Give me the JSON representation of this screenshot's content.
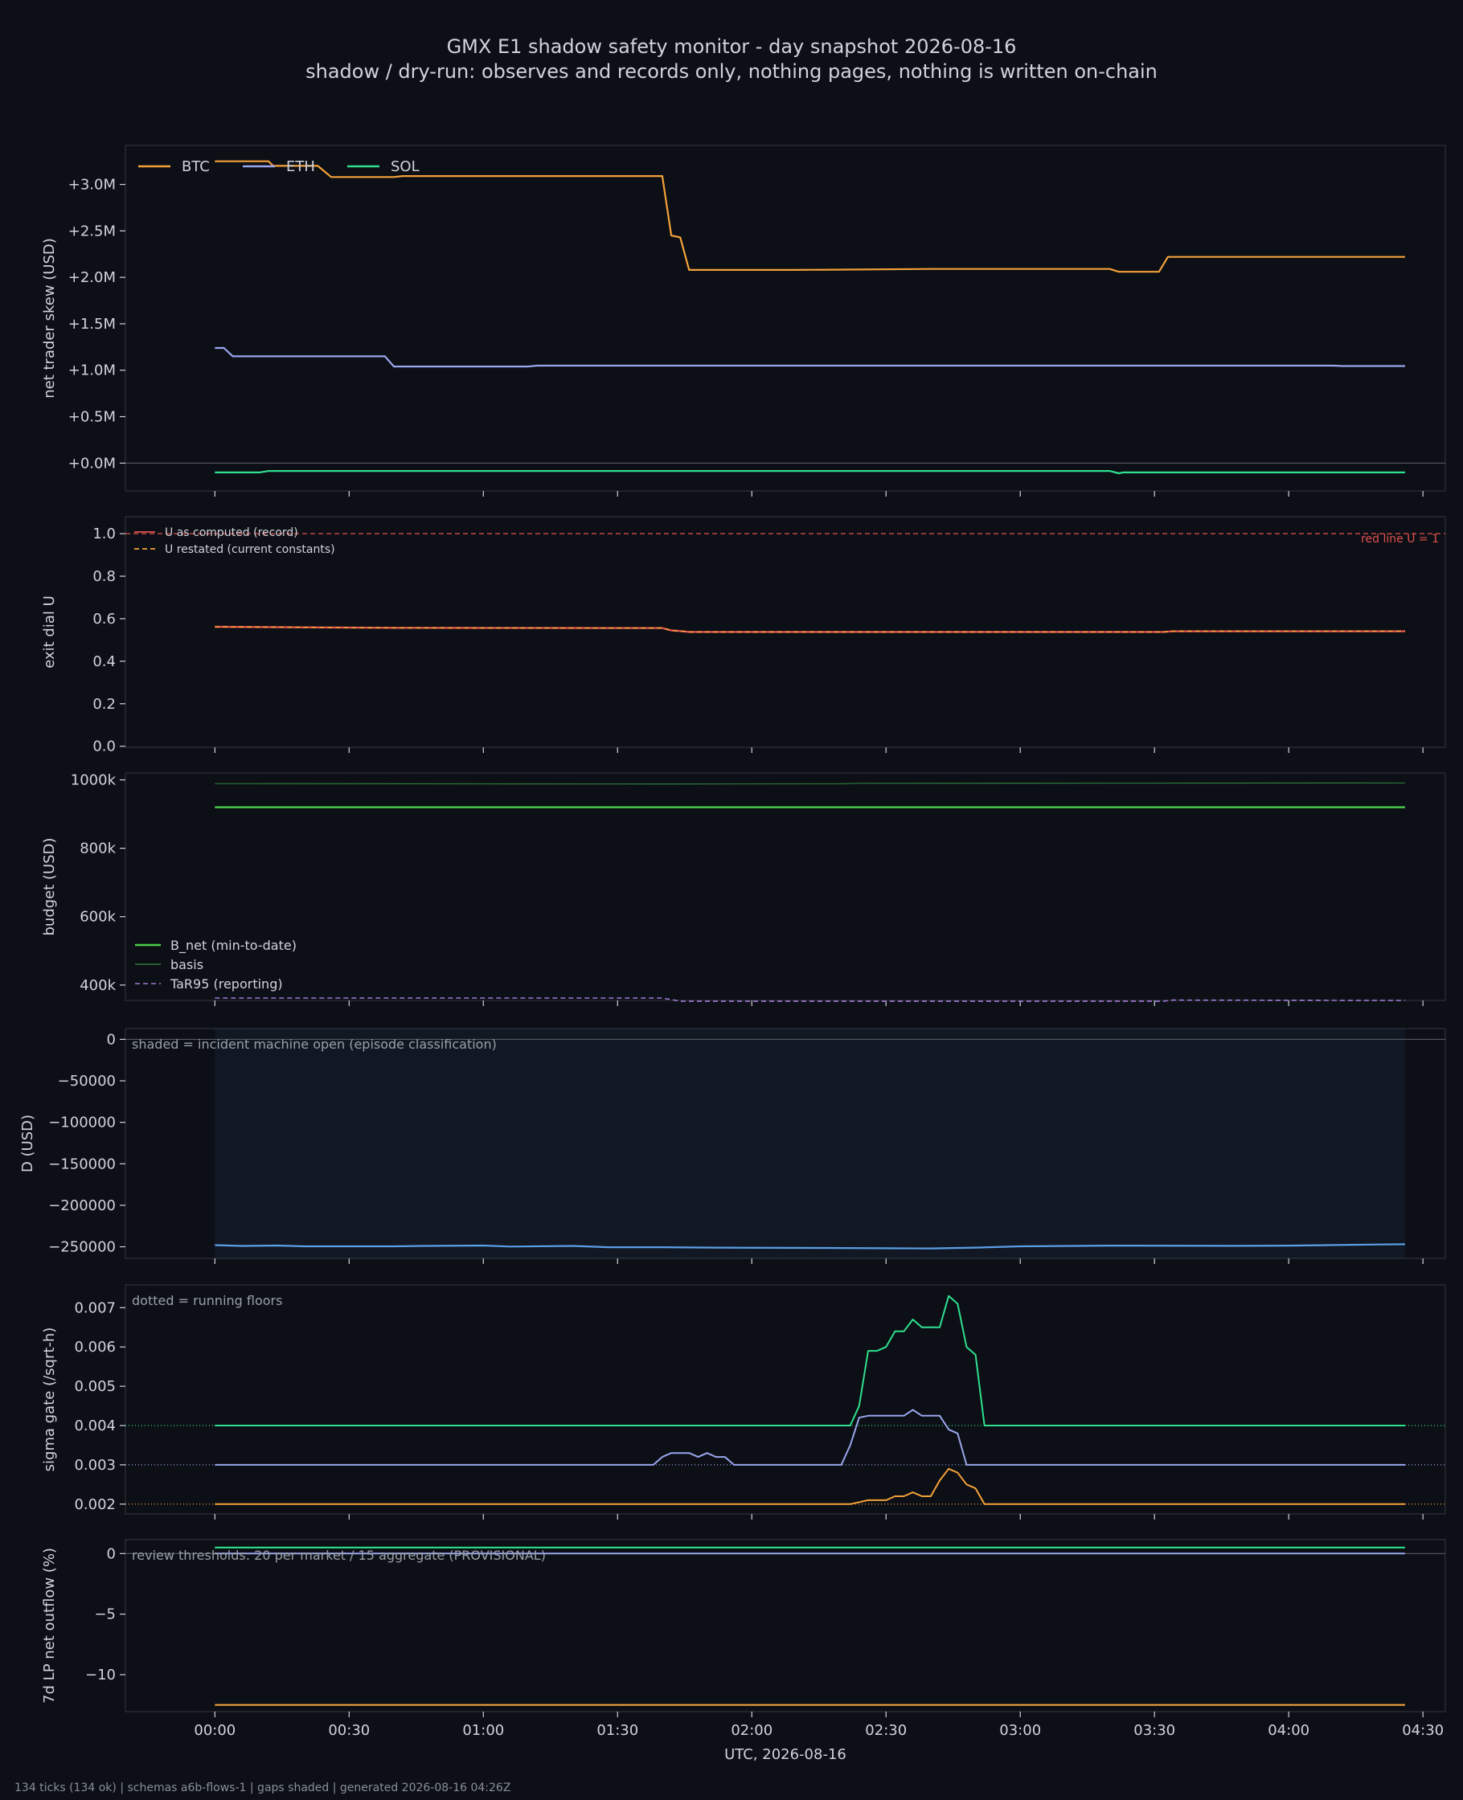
{
  "header": {
    "title": "GMX E1 shadow safety monitor - day snapshot 2026-08-16",
    "subtitle": "shadow / dry-run: observes and records only, nothing pages, nothing is written on-chain"
  },
  "footer": "134 ticks (134 ok) | schemas a6b-flows-1 | gaps shaded | generated 2026-08-16 04:26Z",
  "colors": {
    "btc": "#f4a13a",
    "eth": "#9aa6ee",
    "sol": "#2fe08e",
    "green": "#4ccf4c",
    "red": "#e35050",
    "purple": "#a07ad8",
    "blue": "#5b9fe6"
  },
  "chart_data": [
    {
      "id": "skew",
      "type": "line",
      "ylabel": "net trader skew (USD)",
      "xlim": [
        -20,
        275
      ],
      "ylim": [
        -300000,
        3420000
      ],
      "yticks": [
        0,
        500000,
        1000000,
        1500000,
        2000000,
        2500000,
        3000000
      ],
      "ytick_labels": [
        "+0.0M",
        "+0.5M",
        "+1.0M",
        "+1.5M",
        "+2.0M",
        "+2.5M",
        "+3.0M"
      ],
      "hlines": [
        {
          "y": 0,
          "color": "#55595f",
          "dash": ""
        }
      ],
      "legend": "upper-left",
      "series": [
        {
          "name": "BTC",
          "color": "#f4a13a",
          "width": 2.2,
          "points": [
            [
              0,
              3250000
            ],
            [
              12,
              3250000
            ],
            [
              13,
              3200000
            ],
            [
              23,
              3200000
            ],
            [
              26,
              3080000
            ],
            [
              40,
              3080000
            ],
            [
              42,
              3090000
            ],
            [
              84,
              3090000
            ],
            [
              100,
              3090000
            ],
            [
              102,
              2450000
            ],
            [
              104,
              2430000
            ],
            [
              106,
              2080000
            ],
            [
              130,
              2080000
            ],
            [
              160,
              2090000
            ],
            [
              200,
              2090000
            ],
            [
              202,
              2060000
            ],
            [
              211,
              2060000
            ],
            [
              213,
              2220000
            ],
            [
              266,
              2220000
            ]
          ]
        },
        {
          "name": "ETH",
          "color": "#9aa6ee",
          "width": 2.2,
          "points": [
            [
              0,
              1240000
            ],
            [
              2,
              1240000
            ],
            [
              4,
              1150000
            ],
            [
              38,
              1150000
            ],
            [
              40,
              1040000
            ],
            [
              70,
              1040000
            ],
            [
              72,
              1050000
            ],
            [
              150,
              1050000
            ],
            [
              250,
              1050000
            ],
            [
              252,
              1045000
            ],
            [
              266,
              1045000
            ]
          ]
        },
        {
          "name": "SOL",
          "color": "#2fe08e",
          "width": 2.2,
          "points": [
            [
              0,
              -100000
            ],
            [
              10,
              -100000
            ],
            [
              12,
              -85000
            ],
            [
              200,
              -85000
            ],
            [
              202,
              -110000
            ],
            [
              203,
              -100000
            ],
            [
              266,
              -100000
            ]
          ]
        }
      ]
    },
    {
      "id": "exit",
      "type": "line",
      "ylabel": "exit dial U",
      "xlim": [
        -20,
        275
      ],
      "ylim": [
        -0.005,
        1.08
      ],
      "yticks": [
        0,
        0.2,
        0.4,
        0.6,
        0.8,
        1.0
      ],
      "ytick_labels": [
        "0.0",
        "0.2",
        "0.4",
        "0.6",
        "0.8",
        "1.0"
      ],
      "hlines": [
        {
          "y": 1.0,
          "color": "#e35050",
          "dash": "6,4"
        }
      ],
      "annotations": [
        {
          "text": "red line U = 1",
          "align": "right",
          "color": "#e35050"
        }
      ],
      "legend": "upper-left-small",
      "series": [
        {
          "name": "U as computed (record)",
          "color": "#e35050",
          "width": 2.4,
          "dash": "",
          "points": [
            [
              0,
              0.562
            ],
            [
              40,
              0.557
            ],
            [
              100,
              0.556
            ],
            [
              102,
              0.545
            ],
            [
              104,
              0.542
            ],
            [
              106,
              0.538
            ],
            [
              212,
              0.538
            ],
            [
              214,
              0.541
            ],
            [
              266,
              0.541
            ]
          ]
        },
        {
          "name": "U restated (current constants)",
          "color": "#f4a13a",
          "width": 1.6,
          "dash": "6,4",
          "points": [
            [
              0,
              0.562
            ],
            [
              40,
              0.557
            ],
            [
              100,
              0.556
            ],
            [
              102,
              0.545
            ],
            [
              104,
              0.542
            ],
            [
              106,
              0.538
            ],
            [
              212,
              0.538
            ],
            [
              214,
              0.541
            ],
            [
              266,
              0.541
            ]
          ]
        }
      ]
    },
    {
      "id": "budget",
      "type": "line",
      "ylabel": "budget (USD)",
      "xlim": [
        -20,
        275
      ],
      "ylim": [
        355000,
        1020000
      ],
      "yticks": [
        400000,
        600000,
        800000,
        1000000
      ],
      "ytick_labels": [
        "400k",
        "600k",
        "800k",
        "1000k"
      ],
      "legend": "lower-left",
      "series": [
        {
          "name": "B_net (min-to-date)",
          "color": "#4ccf4c",
          "width": 2.4,
          "points": [
            [
              0,
              920000
            ],
            [
              266,
              920000
            ]
          ]
        },
        {
          "name": "basis",
          "color": "#2f7a3a",
          "width": 1.2,
          "points": [
            [
              0,
              989000
            ],
            [
              100,
              988000
            ],
            [
              140,
              988500
            ],
            [
              143,
              990000
            ],
            [
              266,
              991000
            ]
          ]
        },
        {
          "name": "TaR95 (reporting)",
          "color": "#a07ad8",
          "width": 1.6,
          "dash": "6,4",
          "points": [
            [
              0,
              362000
            ],
            [
              100,
              362000
            ],
            [
              104,
              353000
            ],
            [
              212,
              353000
            ],
            [
              214,
              356000
            ],
            [
              266,
              355000
            ]
          ]
        }
      ]
    },
    {
      "id": "d",
      "type": "line",
      "ylabel": "D (USD)",
      "xlim": [
        -20,
        275
      ],
      "ylim": [
        -264000,
        13000
      ],
      "yticks": [
        -250000,
        -200000,
        -150000,
        -100000,
        -50000,
        0
      ],
      "ytick_labels": [
        "−250000",
        "−200000",
        "−150000",
        "−100000",
        "−50000",
        "0"
      ],
      "hlines": [
        {
          "y": 0,
          "color": "#55595f",
          "dash": ""
        }
      ],
      "shade": [
        0,
        266
      ],
      "note": "shaded = incident machine open (episode classification)",
      "series": [
        {
          "name": "D",
          "color": "#5b9fe6",
          "width": 2.2,
          "points": [
            [
              0,
              -248000
            ],
            [
              6,
              -249000
            ],
            [
              14,
              -248500
            ],
            [
              20,
              -249500
            ],
            [
              40,
              -249500
            ],
            [
              46,
              -249000
            ],
            [
              60,
              -248500
            ],
            [
              66,
              -249800
            ],
            [
              80,
              -249000
            ],
            [
              88,
              -250500
            ],
            [
              100,
              -250500
            ],
            [
              112,
              -251000
            ],
            [
              140,
              -251500
            ],
            [
              150,
              -251800
            ],
            [
              160,
              -252000
            ],
            [
              170,
              -251000
            ],
            [
              180,
              -249500
            ],
            [
              200,
              -248600
            ],
            [
              230,
              -248900
            ],
            [
              240,
              -248600
            ],
            [
              260,
              -247200
            ],
            [
              266,
              -247000
            ]
          ]
        }
      ]
    },
    {
      "id": "sigma",
      "type": "line",
      "ylabel": "sigma gate (/sqrt-h)",
      "xlim": [
        -20,
        275
      ],
      "ylim": [
        0.00175,
        0.00758
      ],
      "yticks": [
        0.002,
        0.003,
        0.004,
        0.005,
        0.006,
        0.007
      ],
      "ytick_labels": [
        "0.002",
        "0.003",
        "0.004",
        "0.005",
        "0.006",
        "0.007"
      ],
      "hlines": [
        {
          "y": 0.004,
          "color": "#2fe08e",
          "dash": "1,3"
        },
        {
          "y": 0.003,
          "color": "#9aa6ee",
          "dash": "1,3"
        },
        {
          "y": 0.002,
          "color": "#f4a13a",
          "dash": "1,3"
        }
      ],
      "note": "dotted = running floors",
      "series": [
        {
          "name": "SOL",
          "color": "#2fe08e",
          "width": 2,
          "points": [
            [
              0,
              0.004
            ],
            [
              142,
              0.004
            ],
            [
              144,
              0.0045
            ],
            [
              146,
              0.0059
            ],
            [
              148,
              0.0059
            ],
            [
              150,
              0.006
            ],
            [
              152,
              0.0064
            ],
            [
              154,
              0.0064
            ],
            [
              156,
              0.0067
            ],
            [
              158,
              0.0065
            ],
            [
              162,
              0.0065
            ],
            [
              164,
              0.0073
            ],
            [
              166,
              0.0071
            ],
            [
              168,
              0.006
            ],
            [
              170,
              0.0058
            ],
            [
              172,
              0.004
            ],
            [
              266,
              0.004
            ]
          ]
        },
        {
          "name": "ETH",
          "color": "#9aa6ee",
          "width": 2,
          "points": [
            [
              0,
              0.003
            ],
            [
              98,
              0.003
            ],
            [
              100,
              0.0032
            ],
            [
              102,
              0.0033
            ],
            [
              106,
              0.0033
            ],
            [
              108,
              0.0032
            ],
            [
              110,
              0.0033
            ],
            [
              112,
              0.0032
            ],
            [
              114,
              0.0032
            ],
            [
              116,
              0.003
            ],
            [
              140,
              0.003
            ],
            [
              142,
              0.0035
            ],
            [
              144,
              0.0042
            ],
            [
              146,
              0.00425
            ],
            [
              154,
              0.00425
            ],
            [
              156,
              0.0044
            ],
            [
              158,
              0.00425
            ],
            [
              162,
              0.00425
            ],
            [
              164,
              0.0039
            ],
            [
              166,
              0.0038
            ],
            [
              168,
              0.003
            ],
            [
              266,
              0.003
            ]
          ]
        },
        {
          "name": "BTC",
          "color": "#f4a13a",
          "width": 2,
          "points": [
            [
              0,
              0.002
            ],
            [
              142,
              0.002
            ],
            [
              146,
              0.0021
            ],
            [
              150,
              0.0021
            ],
            [
              152,
              0.0022
            ],
            [
              154,
              0.0022
            ],
            [
              156,
              0.0023
            ],
            [
              158,
              0.0022
            ],
            [
              160,
              0.0022
            ],
            [
              162,
              0.0026
            ],
            [
              164,
              0.0029
            ],
            [
              166,
              0.0028
            ],
            [
              168,
              0.0025
            ],
            [
              170,
              0.0024
            ],
            [
              172,
              0.002
            ],
            [
              266,
              0.002
            ]
          ]
        }
      ]
    },
    {
      "id": "lp",
      "type": "line",
      "ylabel": "7d LP net outflow (%)",
      "xlim": [
        -20,
        275
      ],
      "ylim": [
        -13.05,
        1.15
      ],
      "yticks": [
        -10,
        -5,
        0
      ],
      "ytick_labels": [
        "−10",
        "−5",
        "0"
      ],
      "hlines": [
        {
          "y": 0,
          "color": "#55595f",
          "dash": ""
        }
      ],
      "note": "review thresholds: 20 per market / 15 aggregate (PROVISIONAL)",
      "series": [
        {
          "name": "SOL",
          "color": "#2fe08e",
          "width": 2.2,
          "points": [
            [
              0,
              0.5
            ],
            [
              266,
              0.5
            ]
          ]
        },
        {
          "name": "ETH",
          "color": "#9aa6ee",
          "width": 2,
          "points": [
            [
              0,
              0
            ],
            [
              266,
              0
            ]
          ]
        },
        {
          "name": "BTC",
          "color": "#f4a13a",
          "width": 2.2,
          "points": [
            [
              0,
              -12.5
            ],
            [
              266,
              -12.5
            ]
          ]
        }
      ]
    }
  ],
  "xaxis": {
    "label": "UTC, 2026-08-16",
    "ticks": [
      0,
      30,
      60,
      90,
      120,
      150,
      180,
      210,
      240,
      270
    ],
    "tick_labels": [
      "00:00",
      "00:30",
      "01:00",
      "01:30",
      "02:00",
      "02:30",
      "03:00",
      "03:30",
      "04:00",
      "04:30"
    ]
  }
}
